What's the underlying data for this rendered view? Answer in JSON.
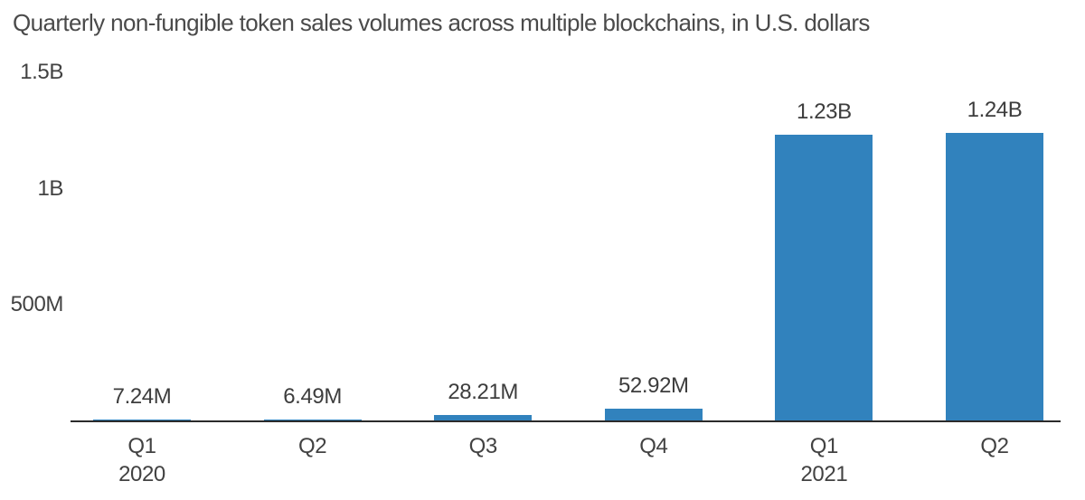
{
  "chart_data": {
    "type": "bar",
    "title": "Quarterly non-fungible token sales volumes across multiple blockchains, in U.S. dollars",
    "categories": [
      "Q1",
      "Q2",
      "Q3",
      "Q4",
      "Q1",
      "Q2"
    ],
    "year_markers": [
      {
        "index": 0,
        "label": "2020"
      },
      {
        "index": 4,
        "label": "2021"
      }
    ],
    "values": [
      7240000,
      6490000,
      28210000,
      52920000,
      1230000000,
      1240000000
    ],
    "value_labels": [
      "7.24M",
      "6.49M",
      "28.21M",
      "52.92M",
      "1.23B",
      "1.24B"
    ],
    "y_ticks": [
      {
        "label": "1.5B",
        "value": 1500000000
      },
      {
        "label": "1B",
        "value": 1000000000
      },
      {
        "label": "500M",
        "value": 500000000
      }
    ],
    "ylim": [
      0,
      1500000000
    ],
    "xlabel": "",
    "ylabel": "",
    "grid": false,
    "legend_position": "none",
    "colors": {
      "bar": "#3182bd",
      "axis_line": "#2b2b2b",
      "tick_text": "#424242",
      "value_text": "#3d3d3d",
      "title_text": "#4a4a4a",
      "background": "#ffffff"
    }
  }
}
